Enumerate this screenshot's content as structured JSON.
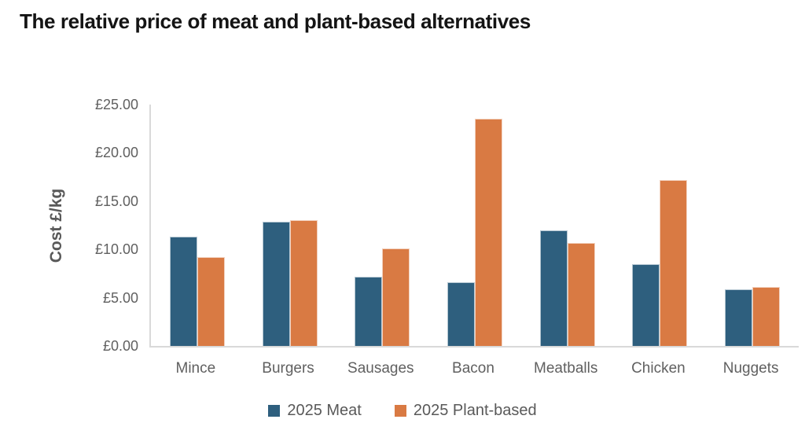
{
  "title": "The relative price of meat and plant-based alternatives",
  "chart_data": {
    "type": "bar",
    "title": "The relative price of meat and plant-based alternatives",
    "categories": [
      "Mince",
      "Burgers",
      "Sausages",
      "Bacon",
      "Meatballs",
      "Chicken",
      "Nuggets"
    ],
    "series": [
      {
        "name": "2025 Meat",
        "color": "#2E5F7E",
        "values": [
          11.3,
          12.9,
          7.2,
          6.6,
          12.0,
          8.5,
          5.9
        ]
      },
      {
        "name": "2025 Plant-based",
        "color": "#D97A43",
        "values": [
          9.2,
          13.0,
          10.1,
          23.5,
          10.7,
          17.2,
          6.1
        ]
      }
    ],
    "xlabel": "",
    "ylabel": "Cost £/kg",
    "ylim": [
      0,
      25
    ],
    "y_ticks": [
      {
        "value": 0,
        "label": "£0.00"
      },
      {
        "value": 5,
        "label": "£5.00"
      },
      {
        "value": 10,
        "label": "£10.00"
      },
      {
        "value": 15,
        "label": "£15.00"
      },
      {
        "value": 20,
        "label": "£20.00"
      },
      {
        "value": 25,
        "label": "£25.00"
      }
    ],
    "grid": false,
    "legend_position": "bottom"
  },
  "colors": {
    "axis_line": "#D9D9D9",
    "axis_text": "#606060",
    "title_text": "#141414"
  }
}
